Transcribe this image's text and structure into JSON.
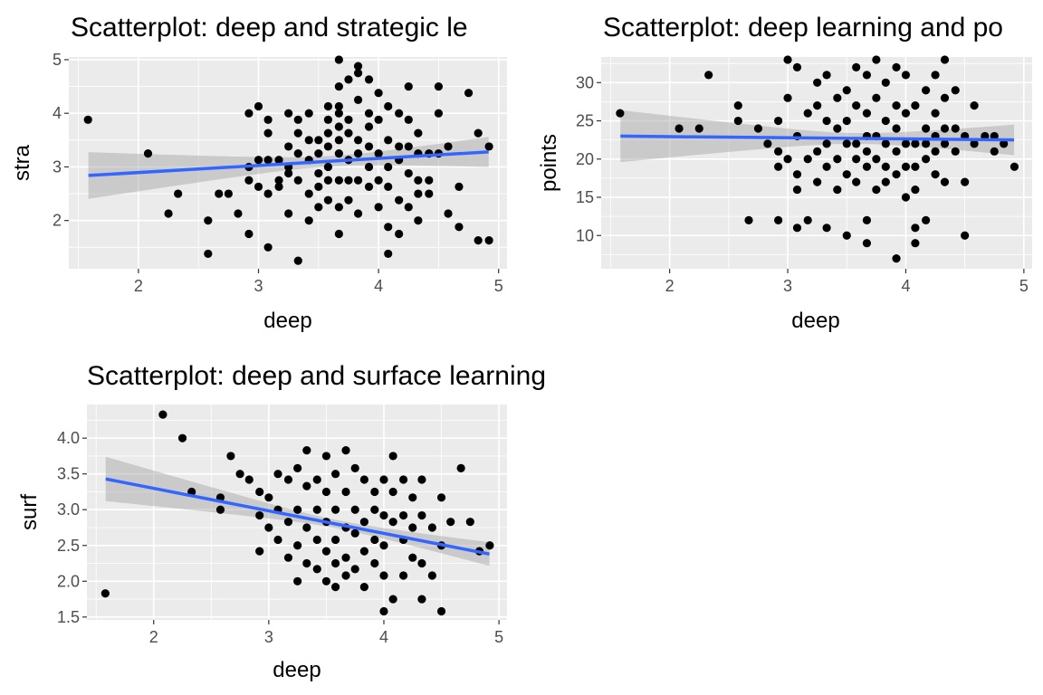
{
  "colors": {
    "panel": "#ebebeb",
    "grid": "#ffffff",
    "point": "#000000",
    "fit_line": "#3366ff",
    "band": "#999999"
  },
  "chart_data": [
    {
      "type": "scatter",
      "title": "Scatterplot: deep and strategic le",
      "xlabel": "deep",
      "ylabel": "stra",
      "xlim": [
        1.42,
        5.07
      ],
      "ylim": [
        1.1,
        5.05
      ],
      "x_ticks": [
        "2",
        "3",
        "4",
        "5"
      ],
      "y_ticks": [
        "2",
        "3",
        "4",
        "5"
      ],
      "grid": true,
      "smooth": {
        "method": "lm",
        "x": [
          1.583,
          4.917
        ],
        "y": [
          2.84,
          3.28
        ],
        "band_lower": [
          2.4,
          2.99
        ],
        "band_upper": [
          3.27,
          3.55
        ]
      },
      "points": [
        [
          1.58,
          3.88
        ],
        [
          2.08,
          3.25
        ],
        [
          2.25,
          2.13
        ],
        [
          2.33,
          2.5
        ],
        [
          2.58,
          2.0
        ],
        [
          2.58,
          1.38
        ],
        [
          2.67,
          2.5
        ],
        [
          2.75,
          2.5
        ],
        [
          2.83,
          2.13
        ],
        [
          2.92,
          3.0
        ],
        [
          2.92,
          2.75
        ],
        [
          2.92,
          1.75
        ],
        [
          2.92,
          4.0
        ],
        [
          3.0,
          4.13
        ],
        [
          3.0,
          3.13
        ],
        [
          3.0,
          2.63
        ],
        [
          3.08,
          3.13
        ],
        [
          3.08,
          2.5
        ],
        [
          3.08,
          3.63
        ],
        [
          3.08,
          1.5
        ],
        [
          3.08,
          3.88
        ],
        [
          3.17,
          3.13
        ],
        [
          3.17,
          2.75
        ],
        [
          3.17,
          2.63
        ],
        [
          3.25,
          4.0
        ],
        [
          3.25,
          3.38
        ],
        [
          3.25,
          3.0
        ],
        [
          3.25,
          2.88
        ],
        [
          3.25,
          2.13
        ],
        [
          3.33,
          3.63
        ],
        [
          3.33,
          3.25
        ],
        [
          3.33,
          2.75
        ],
        [
          3.33,
          1.25
        ],
        [
          3.33,
          3.88
        ],
        [
          3.42,
          3.5
        ],
        [
          3.42,
          3.13
        ],
        [
          3.42,
          2.5
        ],
        [
          3.42,
          2.0
        ],
        [
          3.42,
          4.0
        ],
        [
          3.5,
          3.5
        ],
        [
          3.5,
          3.25
        ],
        [
          3.5,
          2.88
        ],
        [
          3.5,
          2.63
        ],
        [
          3.5,
          2.25
        ],
        [
          3.58,
          4.13
        ],
        [
          3.58,
          3.63
        ],
        [
          3.58,
          3.38
        ],
        [
          3.58,
          3.0
        ],
        [
          3.58,
          2.75
        ],
        [
          3.58,
          2.38
        ],
        [
          3.58,
          3.88
        ],
        [
          3.67,
          5.0
        ],
        [
          3.67,
          4.5
        ],
        [
          3.67,
          4.13
        ],
        [
          3.67,
          3.75
        ],
        [
          3.67,
          3.5
        ],
        [
          3.67,
          3.25
        ],
        [
          3.67,
          2.75
        ],
        [
          3.67,
          2.25
        ],
        [
          3.67,
          1.75
        ],
        [
          3.67,
          4.0
        ],
        [
          3.75,
          4.63
        ],
        [
          3.75,
          3.88
        ],
        [
          3.75,
          3.63
        ],
        [
          3.75,
          3.13
        ],
        [
          3.75,
          2.75
        ],
        [
          3.75,
          2.38
        ],
        [
          3.83,
          4.88
        ],
        [
          3.83,
          4.75
        ],
        [
          3.83,
          4.25
        ],
        [
          3.83,
          3.5
        ],
        [
          3.83,
          3.25
        ],
        [
          3.83,
          2.75
        ],
        [
          3.83,
          2.13
        ],
        [
          3.92,
          4.63
        ],
        [
          3.92,
          4.0
        ],
        [
          3.92,
          3.75
        ],
        [
          3.92,
          3.38
        ],
        [
          3.92,
          3.0
        ],
        [
          3.92,
          2.63
        ],
        [
          4.0,
          4.38
        ],
        [
          4.0,
          3.88
        ],
        [
          4.0,
          3.25
        ],
        [
          4.0,
          2.75
        ],
        [
          4.0,
          2.25
        ],
        [
          4.08,
          4.13
        ],
        [
          4.08,
          3.5
        ],
        [
          4.08,
          3.0
        ],
        [
          4.08,
          2.63
        ],
        [
          4.08,
          1.88
        ],
        [
          4.08,
          1.38
        ],
        [
          4.17,
          4.0
        ],
        [
          4.17,
          3.38
        ],
        [
          4.17,
          3.13
        ],
        [
          4.17,
          2.38
        ],
        [
          4.17,
          1.75
        ],
        [
          4.25,
          4.5
        ],
        [
          4.25,
          3.88
        ],
        [
          4.25,
          3.38
        ],
        [
          4.25,
          2.88
        ],
        [
          4.25,
          2.25
        ],
        [
          4.33,
          3.63
        ],
        [
          4.33,
          3.25
        ],
        [
          4.33,
          2.75
        ],
        [
          4.33,
          2.5
        ],
        [
          4.33,
          2.0
        ],
        [
          4.42,
          3.25
        ],
        [
          4.42,
          2.75
        ],
        [
          4.42,
          2.5
        ],
        [
          4.5,
          4.5
        ],
        [
          4.5,
          4.0
        ],
        [
          4.5,
          3.25
        ],
        [
          4.58,
          3.38
        ],
        [
          4.58,
          2.13
        ],
        [
          4.67,
          2.63
        ],
        [
          4.67,
          1.88
        ],
        [
          4.75,
          4.38
        ],
        [
          4.83,
          3.63
        ],
        [
          4.83,
          1.63
        ],
        [
          4.92,
          3.38
        ],
        [
          4.92,
          1.63
        ]
      ]
    },
    {
      "type": "scatter",
      "title": "Scatterplot: deep learning and po",
      "xlabel": "deep",
      "ylabel": "points",
      "xlim": [
        1.42,
        5.07
      ],
      "ylim": [
        5.65,
        33.35
      ],
      "x_ticks": [
        "2",
        "3",
        "4",
        "5"
      ],
      "y_ticks": [
        "10",
        "15",
        "20",
        "25",
        "30"
      ],
      "grid": true,
      "smooth": {
        "method": "lm",
        "x": [
          1.583,
          4.917
        ],
        "y": [
          23.0,
          22.5
        ],
        "band_lower": [
          19.6,
          20.6
        ],
        "band_upper": [
          26.4,
          24.6
        ]
      },
      "points": [
        [
          1.58,
          26
        ],
        [
          2.08,
          24
        ],
        [
          2.25,
          24
        ],
        [
          2.33,
          31
        ],
        [
          2.58,
          27
        ],
        [
          2.58,
          25
        ],
        [
          2.67,
          12
        ],
        [
          2.75,
          24
        ],
        [
          2.83,
          22
        ],
        [
          2.92,
          25
        ],
        [
          2.92,
          21
        ],
        [
          2.92,
          19
        ],
        [
          2.92,
          12
        ],
        [
          3.0,
          33
        ],
        [
          3.0,
          28
        ],
        [
          3.0,
          20
        ],
        [
          3.08,
          32
        ],
        [
          3.08,
          23
        ],
        [
          3.08,
          18
        ],
        [
          3.08,
          16
        ],
        [
          3.08,
          11
        ],
        [
          3.17,
          26
        ],
        [
          3.17,
          20
        ],
        [
          3.17,
          12
        ],
        [
          3.25,
          30
        ],
        [
          3.25,
          27
        ],
        [
          3.25,
          21
        ],
        [
          3.25,
          17
        ],
        [
          3.33,
          31
        ],
        [
          3.33,
          25
        ],
        [
          3.33,
          22
        ],
        [
          3.33,
          19
        ],
        [
          3.33,
          11
        ],
        [
          3.42,
          28
        ],
        [
          3.42,
          24
        ],
        [
          3.42,
          20
        ],
        [
          3.42,
          16
        ],
        [
          3.5,
          29
        ],
        [
          3.5,
          25
        ],
        [
          3.5,
          22
        ],
        [
          3.5,
          18
        ],
        [
          3.5,
          10
        ],
        [
          3.58,
          32
        ],
        [
          3.58,
          27
        ],
        [
          3.58,
          22
        ],
        [
          3.58,
          20
        ],
        [
          3.58,
          17
        ],
        [
          3.67,
          31
        ],
        [
          3.67,
          26
        ],
        [
          3.67,
          23
        ],
        [
          3.67,
          21
        ],
        [
          3.67,
          19
        ],
        [
          3.67,
          12
        ],
        [
          3.67,
          9
        ],
        [
          3.75,
          33
        ],
        [
          3.75,
          28
        ],
        [
          3.75,
          23
        ],
        [
          3.75,
          20
        ],
        [
          3.75,
          16
        ],
        [
          3.83,
          30
        ],
        [
          3.83,
          25
        ],
        [
          3.83,
          22
        ],
        [
          3.83,
          19
        ],
        [
          3.83,
          17
        ],
        [
          3.92,
          32
        ],
        [
          3.92,
          27
        ],
        [
          3.92,
          24
        ],
        [
          3.92,
          21
        ],
        [
          3.92,
          18
        ],
        [
          3.92,
          7
        ],
        [
          4.0,
          31
        ],
        [
          4.0,
          26
        ],
        [
          4.0,
          22
        ],
        [
          4.0,
          19
        ],
        [
          4.0,
          15
        ],
        [
          4.08,
          27
        ],
        [
          4.08,
          22
        ],
        [
          4.08,
          19
        ],
        [
          4.08,
          16
        ],
        [
          4.08,
          11
        ],
        [
          4.08,
          9
        ],
        [
          4.17,
          29
        ],
        [
          4.17,
          24
        ],
        [
          4.17,
          22
        ],
        [
          4.17,
          20
        ],
        [
          4.17,
          12
        ],
        [
          4.25,
          31
        ],
        [
          4.25,
          26
        ],
        [
          4.25,
          23
        ],
        [
          4.25,
          21
        ],
        [
          4.25,
          18
        ],
        [
          4.33,
          33
        ],
        [
          4.33,
          28
        ],
        [
          4.33,
          24
        ],
        [
          4.33,
          22
        ],
        [
          4.33,
          17
        ],
        [
          4.42,
          29
        ],
        [
          4.42,
          24
        ],
        [
          4.42,
          21
        ],
        [
          4.5,
          23
        ],
        [
          4.5,
          17
        ],
        [
          4.5,
          10
        ],
        [
          4.58,
          27
        ],
        [
          4.58,
          22
        ],
        [
          4.67,
          23
        ],
        [
          4.75,
          23
        ],
        [
          4.75,
          21
        ],
        [
          4.83,
          22
        ],
        [
          4.92,
          19
        ]
      ]
    },
    {
      "type": "scatter",
      "title": "Scatterplot: deep and surface learning",
      "xlabel": "deep",
      "ylabel": "surf",
      "xlim": [
        1.42,
        5.07
      ],
      "ylim": [
        1.46,
        4.47
      ],
      "x_ticks": [
        "2",
        "3",
        "4",
        "5"
      ],
      "y_ticks": [
        "1.5",
        "2.0",
        "2.5",
        "3.0",
        "3.5",
        "4.0"
      ],
      "grid": true,
      "smooth": {
        "method": "lm",
        "x": [
          1.583,
          4.917
        ],
        "y": [
          3.43,
          2.38
        ],
        "band_lower": [
          3.12,
          2.22
        ],
        "band_upper": [
          3.74,
          2.55
        ]
      },
      "points": [
        [
          1.58,
          1.83
        ],
        [
          2.08,
          4.33
        ],
        [
          2.25,
          4.0
        ],
        [
          2.33,
          3.25
        ],
        [
          2.58,
          3.17
        ],
        [
          2.58,
          3.0
        ],
        [
          2.67,
          3.75
        ],
        [
          2.75,
          3.5
        ],
        [
          2.83,
          3.42
        ],
        [
          2.92,
          3.25
        ],
        [
          2.92,
          2.92
        ],
        [
          2.92,
          2.42
        ],
        [
          3.0,
          3.17
        ],
        [
          3.0,
          2.75
        ],
        [
          3.08,
          3.5
        ],
        [
          3.08,
          3.0
        ],
        [
          3.08,
          2.58
        ],
        [
          3.17,
          3.42
        ],
        [
          3.17,
          2.83
        ],
        [
          3.17,
          2.33
        ],
        [
          3.25,
          3.58
        ],
        [
          3.25,
          3.0
        ],
        [
          3.25,
          2.5
        ],
        [
          3.25,
          2.0
        ],
        [
          3.33,
          3.83
        ],
        [
          3.33,
          3.33
        ],
        [
          3.33,
          2.75
        ],
        [
          3.33,
          2.25
        ],
        [
          3.42,
          3.42
        ],
        [
          3.42,
          3.0
        ],
        [
          3.42,
          2.58
        ],
        [
          3.42,
          2.17
        ],
        [
          3.5,
          3.75
        ],
        [
          3.5,
          3.25
        ],
        [
          3.5,
          2.83
        ],
        [
          3.5,
          2.42
        ],
        [
          3.5,
          2.0
        ],
        [
          3.58,
          3.5
        ],
        [
          3.58,
          3.0
        ],
        [
          3.58,
          2.58
        ],
        [
          3.58,
          2.25
        ],
        [
          3.58,
          1.92
        ],
        [
          3.67,
          3.83
        ],
        [
          3.67,
          3.25
        ],
        [
          3.67,
          2.75
        ],
        [
          3.67,
          2.33
        ],
        [
          3.67,
          2.08
        ],
        [
          3.75,
          3.58
        ],
        [
          3.75,
          3.0
        ],
        [
          3.75,
          2.67
        ],
        [
          3.75,
          2.17
        ],
        [
          3.83,
          3.42
        ],
        [
          3.83,
          2.83
        ],
        [
          3.83,
          2.42
        ],
        [
          3.83,
          1.92
        ],
        [
          3.92,
          3.25
        ],
        [
          3.92,
          3.0
        ],
        [
          3.92,
          2.58
        ],
        [
          3.92,
          2.25
        ],
        [
          4.0,
          3.42
        ],
        [
          4.0,
          2.92
        ],
        [
          4.0,
          2.5
        ],
        [
          4.0,
          2.08
        ],
        [
          4.0,
          1.58
        ],
        [
          4.08,
          3.75
        ],
        [
          4.08,
          3.25
        ],
        [
          4.08,
          2.83
        ],
        [
          4.08,
          1.75
        ],
        [
          4.17,
          3.42
        ],
        [
          4.17,
          2.92
        ],
        [
          4.17,
          2.58
        ],
        [
          4.17,
          2.08
        ],
        [
          4.25,
          3.17
        ],
        [
          4.25,
          2.75
        ],
        [
          4.25,
          2.33
        ],
        [
          4.33,
          3.42
        ],
        [
          4.33,
          2.92
        ],
        [
          4.33,
          2.25
        ],
        [
          4.33,
          1.75
        ],
        [
          4.42,
          2.75
        ],
        [
          4.42,
          2.08
        ],
        [
          4.5,
          3.17
        ],
        [
          4.5,
          2.5
        ],
        [
          4.5,
          1.58
        ],
        [
          4.58,
          2.83
        ],
        [
          4.67,
          3.58
        ],
        [
          4.75,
          2.83
        ],
        [
          4.83,
          2.42
        ],
        [
          4.92,
          2.5
        ]
      ]
    }
  ]
}
